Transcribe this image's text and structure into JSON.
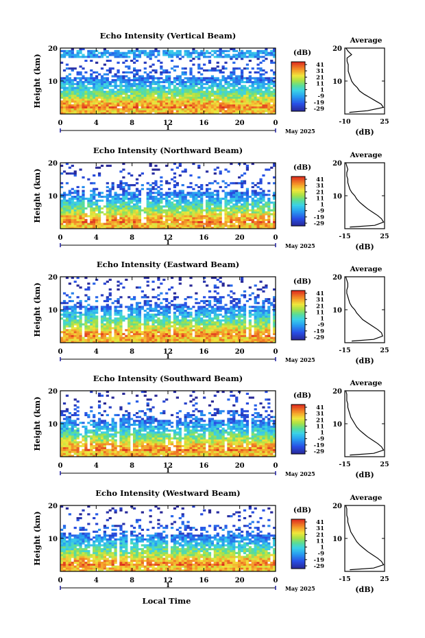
{
  "x_axis_label": "Local Time",
  "date_label": "May 2025",
  "chart_data": [
    {
      "type": "heatmap",
      "title": "Echo Intensity (Vertical Beam)",
      "ylabel": "Height (km)",
      "x_ticks": [
        "0",
        "4",
        "8",
        "12",
        "16",
        "20",
        "0"
      ],
      "y_ticks": [
        "20",
        "10"
      ],
      "xlim": [
        0,
        24
      ],
      "ylim": [
        0,
        20
      ],
      "day_marker": "1",
      "colorbar": {
        "unit": "(dB)",
        "ticks": [
          "41",
          "31",
          "21",
          "11",
          "1",
          "-9",
          "-19",
          "-29"
        ]
      },
      "profile": {
        "title": "Average",
        "xlabel": "(dB)",
        "x_ticks": [
          "-10",
          "25"
        ],
        "xlim": [
          -10,
          25
        ],
        "heights": [
          0.5,
          1,
          2,
          3,
          4,
          5,
          6,
          7,
          8,
          9,
          10,
          11,
          12,
          13,
          14,
          15,
          16,
          17,
          18,
          19,
          20
        ],
        "values": [
          -6,
          10,
          24,
          22,
          17,
          12,
          7,
          3,
          1,
          -2,
          -4,
          -5,
          -6,
          -7,
          -7,
          -7,
          -8,
          -8,
          -4,
          -7,
          -9
        ]
      }
    },
    {
      "type": "heatmap",
      "title": "Echo Intensity (Northward Beam)",
      "ylabel": "Height (km)",
      "x_ticks": [
        "0",
        "4",
        "8",
        "12",
        "16",
        "20",
        "0"
      ],
      "y_ticks": [
        "20",
        "10"
      ],
      "xlim": [
        0,
        24
      ],
      "ylim": [
        0,
        20
      ],
      "day_marker": "1",
      "colorbar": {
        "unit": "(dB)",
        "ticks": [
          "41",
          "31",
          "21",
          "11",
          "1",
          "-9",
          "-19",
          "-29"
        ]
      },
      "profile": {
        "title": "Average",
        "xlabel": "(dB)",
        "x_ticks": [
          "-15",
          "25"
        ],
        "xlim": [
          -15,
          25
        ],
        "heights": [
          0.5,
          1,
          2,
          3,
          4,
          5,
          6,
          7,
          8,
          9,
          10,
          11,
          12,
          13,
          14,
          15,
          16,
          17,
          18,
          19,
          20
        ],
        "values": [
          -10,
          15,
          24,
          22,
          18,
          13,
          8,
          4,
          0,
          -3,
          -5,
          -8,
          -10,
          -11,
          -12,
          -12,
          -13,
          -13,
          -12,
          -13,
          -14
        ]
      }
    },
    {
      "type": "heatmap",
      "title": "Echo Intensity (Eastward Beam)",
      "ylabel": "Height (km)",
      "x_ticks": [
        "0",
        "4",
        "8",
        "12",
        "16",
        "20",
        "0"
      ],
      "y_ticks": [
        "20",
        "10"
      ],
      "xlim": [
        0,
        24
      ],
      "ylim": [
        0,
        20
      ],
      "day_marker": "1",
      "colorbar": {
        "unit": "(dB)",
        "ticks": [
          "41",
          "31",
          "21",
          "11",
          "1",
          "-9",
          "-19",
          "-29"
        ]
      },
      "profile": {
        "title": "Average",
        "xlabel": "(dB)",
        "x_ticks": [
          "-15",
          "25"
        ],
        "xlim": [
          -15,
          25
        ],
        "heights": [
          0.5,
          1,
          2,
          3,
          4,
          5,
          6,
          7,
          8,
          9,
          10,
          11,
          12,
          13,
          14,
          15,
          16,
          17,
          18,
          19,
          20
        ],
        "values": [
          -8,
          14,
          23,
          22,
          18,
          13,
          8,
          3,
          0,
          -3,
          -5,
          -8,
          -10,
          -11,
          -12,
          -13,
          -13,
          -12,
          -12,
          -13,
          -14
        ]
      }
    },
    {
      "type": "heatmap",
      "title": "Echo Intensity (Southward Beam)",
      "ylabel": "Height (km)",
      "x_ticks": [
        "0",
        "4",
        "8",
        "12",
        "16",
        "20",
        "0"
      ],
      "y_ticks": [
        "20",
        "10"
      ],
      "xlim": [
        0,
        24
      ],
      "ylim": [
        0,
        20
      ],
      "day_marker": "1",
      "colorbar": {
        "unit": "(dB)",
        "ticks": [
          "41",
          "31",
          "21",
          "11",
          "1",
          "-9",
          "-19",
          "-29"
        ]
      },
      "profile": {
        "title": "Average",
        "xlabel": "(dB)",
        "x_ticks": [
          "-15",
          "25"
        ],
        "xlim": [
          -15,
          25
        ],
        "heights": [
          0.5,
          1,
          2,
          3,
          4,
          5,
          6,
          7,
          8,
          9,
          10,
          11,
          12,
          13,
          14,
          15,
          16,
          17,
          18,
          19,
          20
        ],
        "values": [
          -10,
          14,
          24,
          22,
          18,
          13,
          8,
          4,
          0,
          -3,
          -5,
          -7,
          -9,
          -10,
          -11,
          -12,
          -12,
          -13,
          -13,
          -13,
          -14
        ]
      }
    },
    {
      "type": "heatmap",
      "title": "Echo Intensity (Westward Beam)",
      "ylabel": "Height (km)",
      "x_ticks": [
        "0",
        "4",
        "8",
        "12",
        "16",
        "20",
        "0"
      ],
      "y_ticks": [
        "20",
        "10"
      ],
      "xlim": [
        0,
        24
      ],
      "ylim": [
        0,
        20
      ],
      "day_marker": "1",
      "colorbar": {
        "unit": "(dB)",
        "ticks": [
          "41",
          "31",
          "21",
          "11",
          "1",
          "-9",
          "-19",
          "-29"
        ]
      },
      "profile": {
        "title": "Average",
        "xlabel": "(dB)",
        "x_ticks": [
          "-15",
          "25"
        ],
        "xlim": [
          -15,
          25
        ],
        "heights": [
          0.5,
          1,
          2,
          3,
          4,
          5,
          6,
          7,
          8,
          9,
          10,
          11,
          12,
          13,
          14,
          15,
          16,
          17,
          18,
          19,
          20
        ],
        "values": [
          -10,
          14,
          24,
          22,
          18,
          13,
          8,
          4,
          0,
          -3,
          -5,
          -7,
          -9,
          -10,
          -11,
          -12,
          -12,
          -13,
          -13,
          -13,
          -14
        ]
      }
    }
  ]
}
